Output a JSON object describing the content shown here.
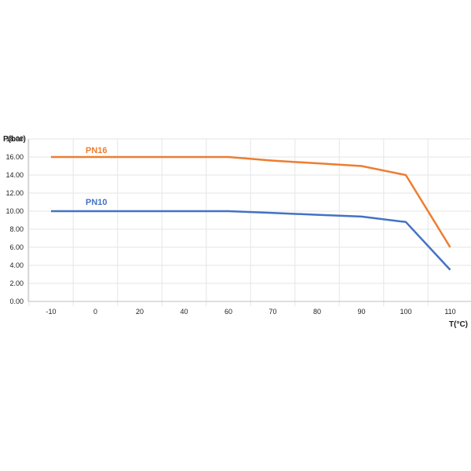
{
  "chart_data": {
    "type": "line",
    "title": "",
    "ylabel": "P(bar)",
    "xlabel": "T(°C)",
    "x_ticks": [
      "-10",
      "0",
      "20",
      "40",
      "60",
      "70",
      "80",
      "90",
      "100",
      "110"
    ],
    "y_ticks": [
      "0.00",
      "2.00",
      "4.00",
      "6.00",
      "8.00",
      "10.00",
      "12.00",
      "14.00",
      "16.00",
      "18.00"
    ],
    "ylim": [
      0,
      18
    ],
    "grid": true,
    "legend": "inline labels",
    "series": [
      {
        "name": "PN16",
        "color": "#ED7D31",
        "points": [
          [
            "-10",
            16.0
          ],
          [
            "0",
            16.0
          ],
          [
            "20",
            16.0
          ],
          [
            "40",
            16.0
          ],
          [
            "60",
            16.0
          ],
          [
            "70",
            15.6
          ],
          [
            "80",
            15.3
          ],
          [
            "90",
            15.0
          ],
          [
            "100",
            14.0
          ],
          [
            "110",
            6.0
          ]
        ]
      },
      {
        "name": "PN10",
        "color": "#4472C4",
        "points": [
          [
            "-10",
            10.0
          ],
          [
            "0",
            10.0
          ],
          [
            "20",
            10.0
          ],
          [
            "40",
            10.0
          ],
          [
            "60",
            10.0
          ],
          [
            "70",
            9.8
          ],
          [
            "80",
            9.6
          ],
          [
            "90",
            9.4
          ],
          [
            "100",
            8.8
          ],
          [
            "110",
            3.5
          ]
        ]
      }
    ]
  }
}
